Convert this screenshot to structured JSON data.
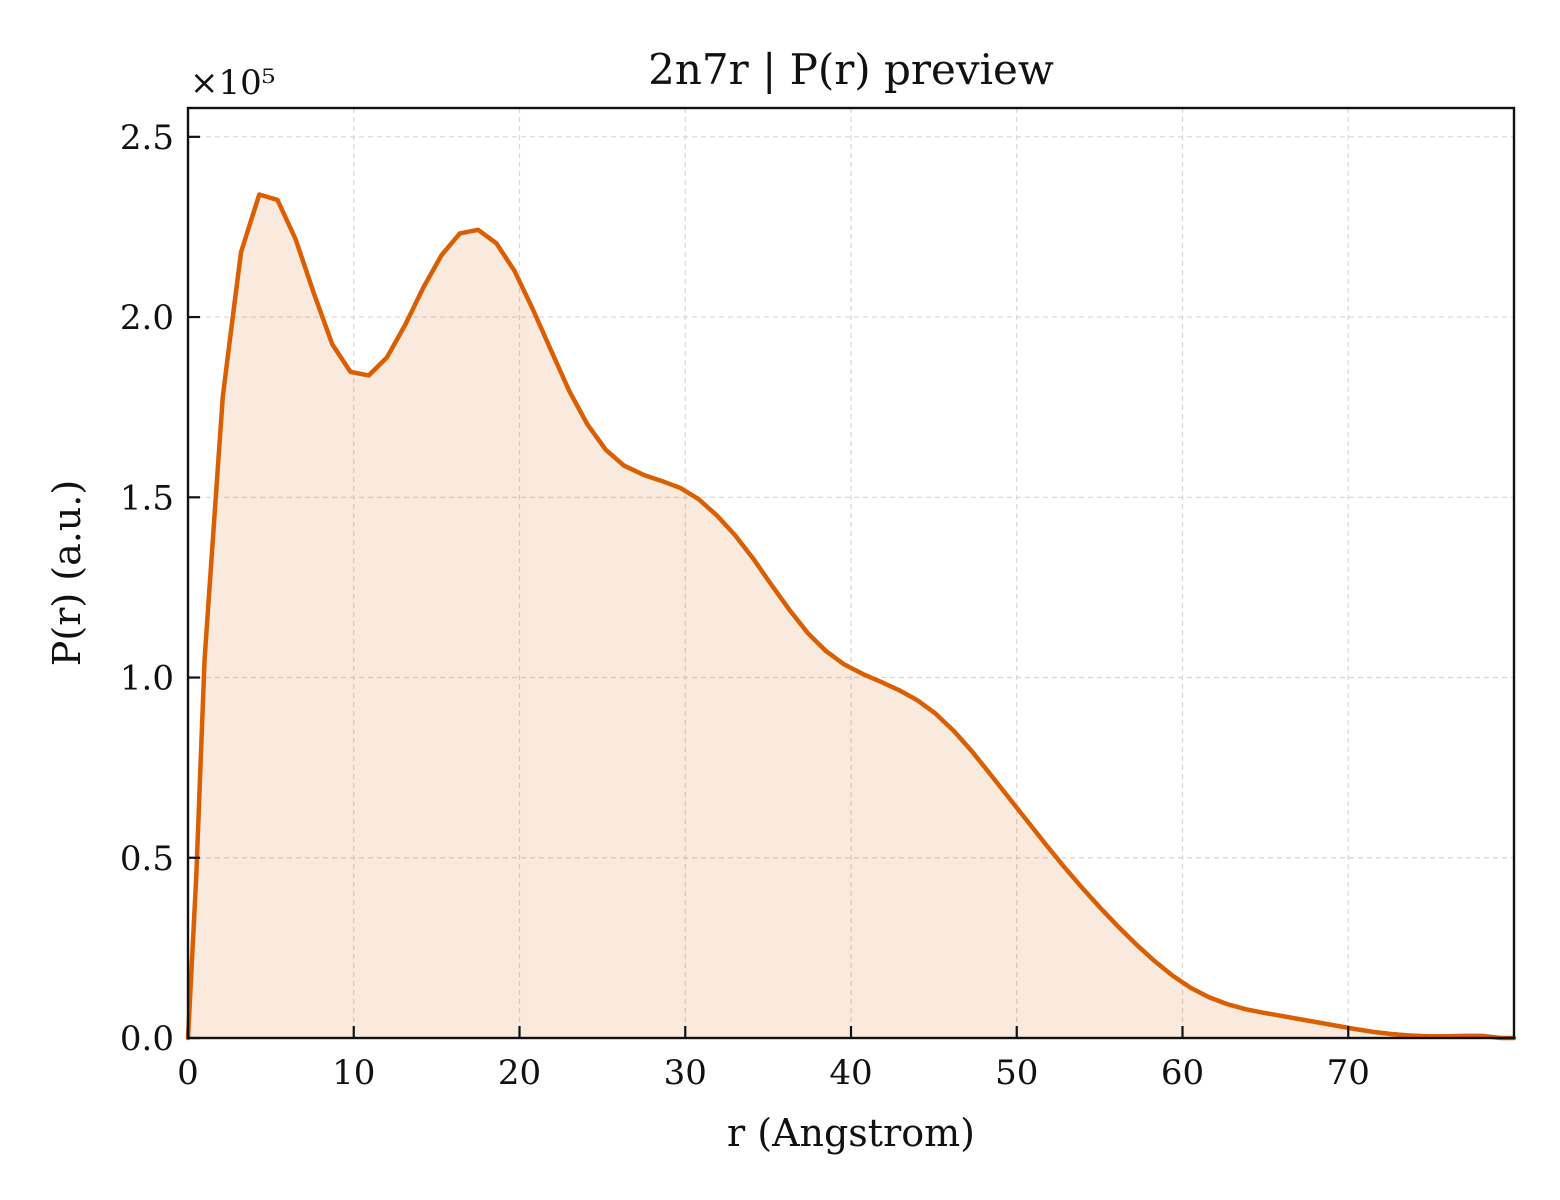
{
  "chart_data": {
    "type": "area",
    "title": "2n7r | P(r) preview",
    "xlabel": "r (Angstrom)",
    "ylabel": "P(r) (a.u.)",
    "y_multiplier_label": "×10⁵",
    "xlim": [
      0,
      80
    ],
    "ylim": [
      0,
      2.58
    ],
    "x_ticks": [
      0,
      10,
      20,
      30,
      40,
      50,
      60,
      70
    ],
    "x_tick_labels": [
      "0",
      "10",
      "20",
      "30",
      "40",
      "50",
      "60",
      "70"
    ],
    "y_ticks": [
      0,
      0.5,
      1.0,
      1.5,
      2.0,
      2.5
    ],
    "y_tick_labels": [
      "0.0",
      "0.5",
      "1.0",
      "1.5",
      "2.0",
      "2.5"
    ],
    "grid": true,
    "colors": {
      "line": "#d95f02",
      "fill": "#d95f02"
    },
    "series": [
      {
        "x": [
          0,
          0.5,
          1.0,
          1.6,
          2.1,
          2.7,
          3.2,
          4.3,
          5.4,
          6.5,
          7.6,
          8.7,
          9.8,
          10.9,
          12.0,
          13.1,
          14.2,
          15.3,
          16.4,
          17.5,
          18.6,
          19.7,
          20.8,
          21.9,
          23.0,
          24.1,
          25.2,
          26.3,
          27.5,
          28.6,
          29.7,
          30.8,
          31.9,
          33.0,
          34.1,
          35.2,
          36.3,
          37.4,
          38.5,
          39.6,
          40.7,
          41.8,
          42.9,
          44.0,
          45.1,
          46.2,
          47.3,
          48.4,
          49.5,
          50.6,
          51.7,
          52.8,
          53.9,
          55.0,
          56.1,
          57.2,
          58.3,
          59.4,
          60.5,
          61.6,
          62.7,
          63.8,
          64.9,
          66.0,
          67.1,
          68.2,
          69.3,
          70.4,
          71.5,
          72.6,
          73.7,
          74.8,
          75.9,
          77.0,
          78.1,
          79.2,
          80.0
        ],
        "y": [
          0.0,
          0.45,
          1.05,
          1.45,
          1.78,
          2.0,
          2.18,
          2.34,
          2.325,
          2.215,
          2.065,
          1.925,
          1.848,
          1.838,
          1.888,
          1.978,
          2.082,
          2.172,
          2.232,
          2.242,
          2.205,
          2.128,
          2.022,
          1.908,
          1.795,
          1.702,
          1.632,
          1.588,
          1.562,
          1.545,
          1.526,
          1.495,
          1.45,
          1.395,
          1.33,
          1.257,
          1.187,
          1.123,
          1.073,
          1.036,
          1.01,
          0.988,
          0.965,
          0.937,
          0.9,
          0.852,
          0.795,
          0.732,
          0.668,
          0.604,
          0.54,
          0.478,
          0.419,
          0.363,
          0.31,
          0.26,
          0.214,
          0.173,
          0.139,
          0.113,
          0.094,
          0.08,
          0.07,
          0.061,
          0.052,
          0.043,
          0.034,
          0.025,
          0.017,
          0.011,
          0.007,
          0.005,
          0.005,
          0.006,
          0.006,
          0.0,
          0.0
        ]
      }
    ]
  }
}
